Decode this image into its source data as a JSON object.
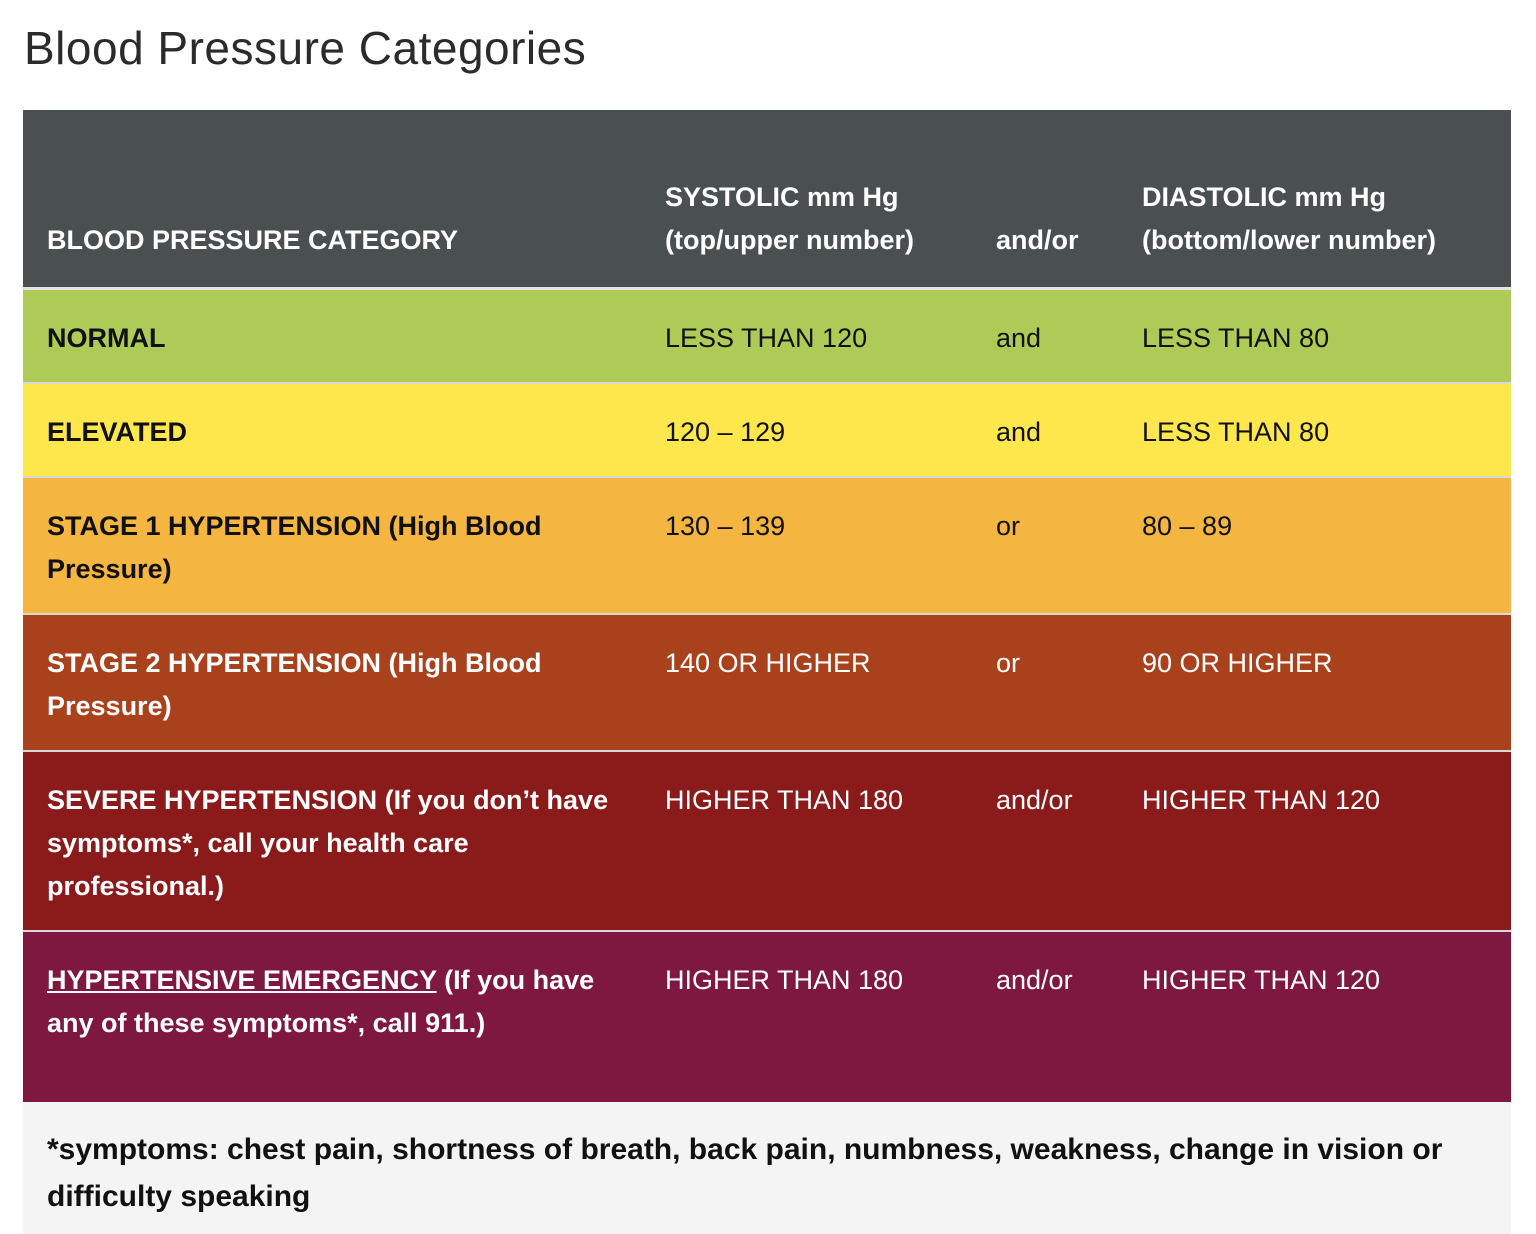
{
  "title": "Blood Pressure Categories",
  "table": {
    "headers": {
      "category": "BLOOD PRESSURE CATEGORY",
      "systolic": "SYSTOLIC mm Hg (top/upper number)",
      "connector": "and/or",
      "diastolic": "DIASTOLIC mm Hg (bottom/lower number)"
    },
    "header_color": "#4a4f50",
    "rows": [
      {
        "category": "NORMAL",
        "category_note": "",
        "systolic": "LESS THAN 120",
        "connector": "and",
        "diastolic": "LESS THAN 80",
        "color": "#afcb57"
      },
      {
        "category": "ELEVATED",
        "category_note": "",
        "systolic": "120 – 129",
        "connector": "and",
        "diastolic": "LESS THAN 80",
        "color": "#fde74c"
      },
      {
        "category": "STAGE 1 HYPERTENSION (High Blood Pressure)",
        "category_note": "",
        "systolic": "130 – 139",
        "connector": "or",
        "diastolic": "80 – 89",
        "color": "#f4b641"
      },
      {
        "category": "STAGE 2 HYPERTENSION (High Blood Pressure)",
        "category_note": "",
        "systolic": "140 OR HIGHER",
        "connector": "or",
        "diastolic": "90 OR HIGHER",
        "color": "#a9411c"
      },
      {
        "category": "SEVERE HYPERTENSION (If you don’t have symptoms*, call your health care professional.)",
        "category_note": "",
        "systolic": "HIGHER THAN 180",
        "connector": "and/or",
        "diastolic": "HIGHER THAN 120",
        "color": "#8b1a1b"
      },
      {
        "category": "HYPERTENSIVE EMERGENCY",
        "category_note": " (If you have any of these symptoms*, call 911.)",
        "systolic": "HIGHER THAN 180",
        "connector": "and/or",
        "diastolic": "HIGHER THAN 120",
        "color": "#7f1840"
      }
    ]
  },
  "footnote": "*symptoms: chest pain, shortness of breath, back pain, numbness, weakness, change in vision or difficulty speaking"
}
